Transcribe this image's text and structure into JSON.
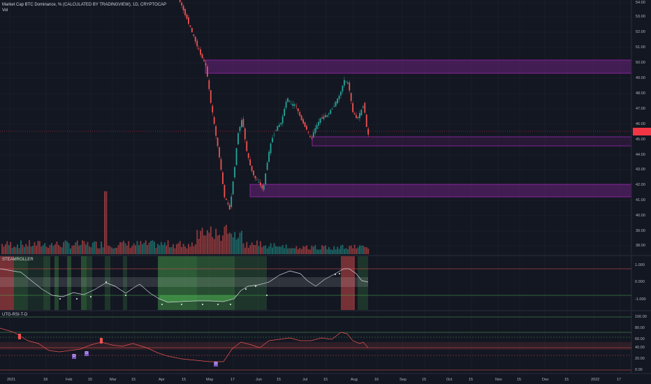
{
  "header": {
    "symbol_line": "Market Cap BTC Dominance, % (CALCULATED BY TRADINGVIEW), 1D, CRYPTOCAP",
    "volume_label": "Vol"
  },
  "price_axis": {
    "labels": [
      "54.00",
      "53.00",
      "52.00",
      "51.00",
      "50.00",
      "49.00",
      "48.00",
      "47.00",
      "46.00",
      "45.00",
      "44.00",
      "43.00",
      "42.00",
      "41.00",
      "40.00",
      "39.00",
      "38.00"
    ],
    "current_price_badge": ""
  },
  "steamroller_pane": {
    "title": "STEAMROLLER",
    "axis_labels": [
      "1.000",
      "0.000",
      "-1.000"
    ]
  },
  "rsi_pane": {
    "title": "UTG-RSI-T-D",
    "axis_labels": [
      "100.00",
      "80.00",
      "60.00",
      "40.00",
      "20.00",
      "0.00"
    ],
    "markers": [
      "D",
      "D",
      "D"
    ]
  },
  "time_axis": {
    "labels": [
      "2021",
      "18",
      "Feb",
      "15",
      "Mar",
      "15",
      "Apr",
      "15",
      "May",
      "17",
      "Jun",
      "15",
      "Jul",
      "15",
      "Aug",
      "16",
      "Sep",
      "15",
      "Oct",
      "15",
      "Nov",
      "15",
      "Dec",
      "15",
      "2022",
      "17"
    ]
  },
  "colors": {
    "background": "#131722",
    "bull": "#26a69a",
    "bear": "#ef5350",
    "zone": "#9c27b0",
    "price_badge": "#f23645",
    "steam_green": "#4caf50",
    "rsi_line": "#ef5350"
  }
}
